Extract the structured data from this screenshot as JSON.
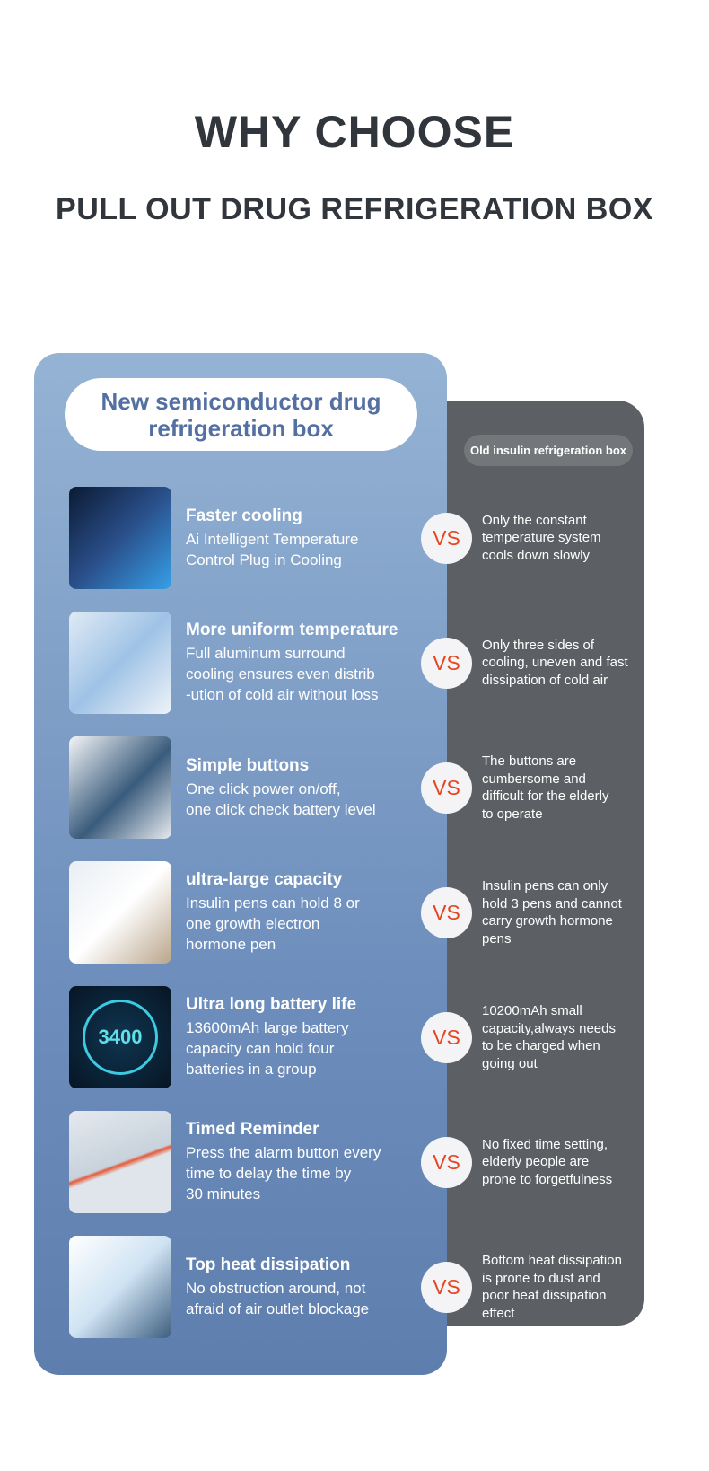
{
  "header": {
    "title": "WHY CHOOSE",
    "subtitle": "PULL OUT DRUG REFRIGERATION BOX"
  },
  "new_label": "New semiconductor drug\nrefrigeration box",
  "old_label": "Old insulin refrigeration box",
  "vs_label": "VS",
  "colors": {
    "blue_top": "#95b3d4",
    "blue_bottom": "#5e7eae",
    "gray": "#5c5f63",
    "vs": "#e5461f",
    "heading": "#30363b"
  },
  "rows": [
    {
      "image": "cooling-chip-image",
      "title": "Faster cooling",
      "desc": "Ai Intelligent Temperature\nControl Plug in Cooling",
      "old": "Only the constant\ntemperature system\ncools down slowly"
    },
    {
      "image": "aluminum-surround-image",
      "title": "More uniform temperature",
      "desc": "Full aluminum surround\ncooling ensures even distrib\n-ution of cold air without loss",
      "old": "Only three sides of\ncooling, uneven and fast\n dissipation of cold air"
    },
    {
      "image": "buttons-display-image",
      "title": "Simple buttons",
      "desc": "One click power on/off,\none click check battery level",
      "old": "The buttons are\ncumbersome and\ndifficult for the elderly\nto operate"
    },
    {
      "image": "drawer-capacity-image",
      "title": "ultra-large capacity",
      "desc": "Insulin pens can hold 8 or\none growth electron\nhormone pen",
      "old": "Insulin pens can only\nhold 3 pens and cannot\ncarry growth hormone\npens"
    },
    {
      "image": "battery-image",
      "title": "Ultra long battery life",
      "desc": "13600mAh large battery\ncapacity can hold four\nbatteries in a group",
      "old": "10200mAh small\ncapacity,always needs\nto be charged when\ngoing out",
      "image_text": "3400"
    },
    {
      "image": "timer-dial-image",
      "title": "Timed Reminder",
      "desc": "Press the alarm button every\ntime to delay the time by\n30 minutes",
      "old": "No fixed time setting,\nelderly people are\nprone to forgetfulness"
    },
    {
      "image": "heat-vent-image",
      "title": "Top heat dissipation",
      "desc": "No obstruction around, not\nafraid of air outlet blockage",
      "old": "Bottom heat dissipation\nis prone to dust and\npoor heat dissipation\neffect"
    }
  ]
}
